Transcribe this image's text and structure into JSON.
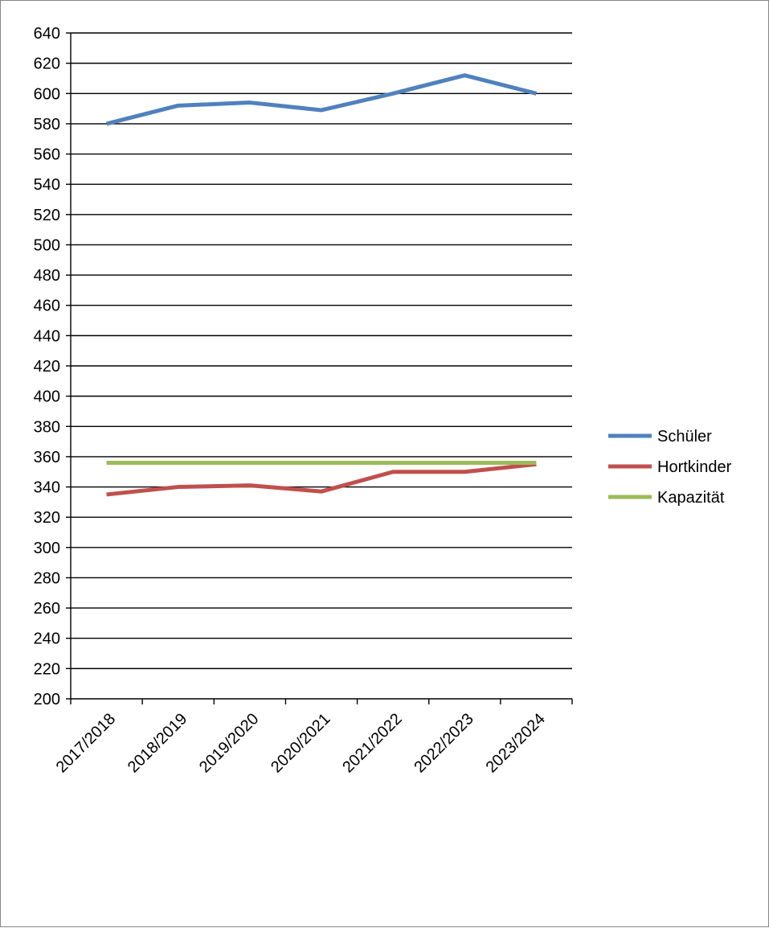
{
  "chart_data": {
    "type": "line",
    "title": "",
    "xlabel": "",
    "ylabel": "",
    "categories": [
      "2017/2018",
      "2018/2019",
      "2019/2020",
      "2020/2021",
      "2021/2022",
      "2022/2023",
      "2023/2024"
    ],
    "ylim": [
      200,
      640
    ],
    "ytick_step": 20,
    "grid": true,
    "legend_position": "right",
    "series": [
      {
        "name": "Schüler",
        "color": "#4F81BD",
        "values": [
          580,
          592,
          594,
          589,
          600,
          612,
          600
        ]
      },
      {
        "name": "Hortkinder",
        "color": "#C0504D",
        "values": [
          335,
          340,
          341,
          337,
          350,
          350,
          355
        ]
      },
      {
        "name": "Kapazität",
        "color": "#9BBB59",
        "values": [
          356,
          356,
          356,
          356,
          356,
          356,
          356
        ]
      }
    ]
  }
}
